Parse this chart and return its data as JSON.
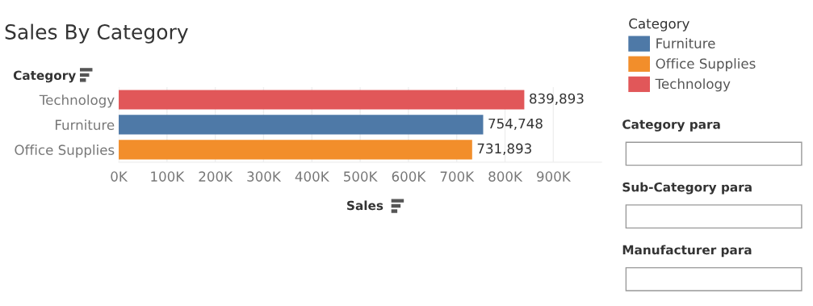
{
  "chart_data": {
    "type": "bar",
    "orientation": "horizontal",
    "title": "Sales By Category",
    "xlabel": "Sales",
    "ylabel": "Category",
    "legend_title": "Category",
    "categories": [
      "Technology",
      "Furniture",
      "Office Supplies"
    ],
    "series": [
      {
        "name": "Furniture",
        "color": "#4e79a7",
        "values": [
          null,
          754748,
          null
        ],
        "value_labels": [
          null,
          "754,748",
          null
        ]
      },
      {
        "name": "Office Supplies",
        "color": "#f28e2b",
        "values": [
          null,
          null,
          731893
        ],
        "value_labels": [
          null,
          null,
          "731,893"
        ]
      },
      {
        "name": "Technology",
        "color": "#e15759",
        "values": [
          839893,
          null,
          null
        ],
        "value_labels": [
          "839,893",
          null,
          null
        ]
      }
    ],
    "xlim": [
      0,
      1000000
    ],
    "xticks": [
      {
        "value": 0,
        "label": "0K"
      },
      {
        "value": 100000,
        "label": "100K"
      },
      {
        "value": 200000,
        "label": "200K"
      },
      {
        "value": 300000,
        "label": "300K"
      },
      {
        "value": 400000,
        "label": "400K"
      },
      {
        "value": 500000,
        "label": "500K"
      },
      {
        "value": 600000,
        "label": "600K"
      },
      {
        "value": 700000,
        "label": "700K"
      },
      {
        "value": 800000,
        "label": "800K"
      },
      {
        "value": 900000,
        "label": "900K"
      }
    ],
    "grid": "x",
    "legend": "right",
    "annotations": [
      "Category para",
      "Sub-Category para",
      "Manufacturer para"
    ]
  }
}
